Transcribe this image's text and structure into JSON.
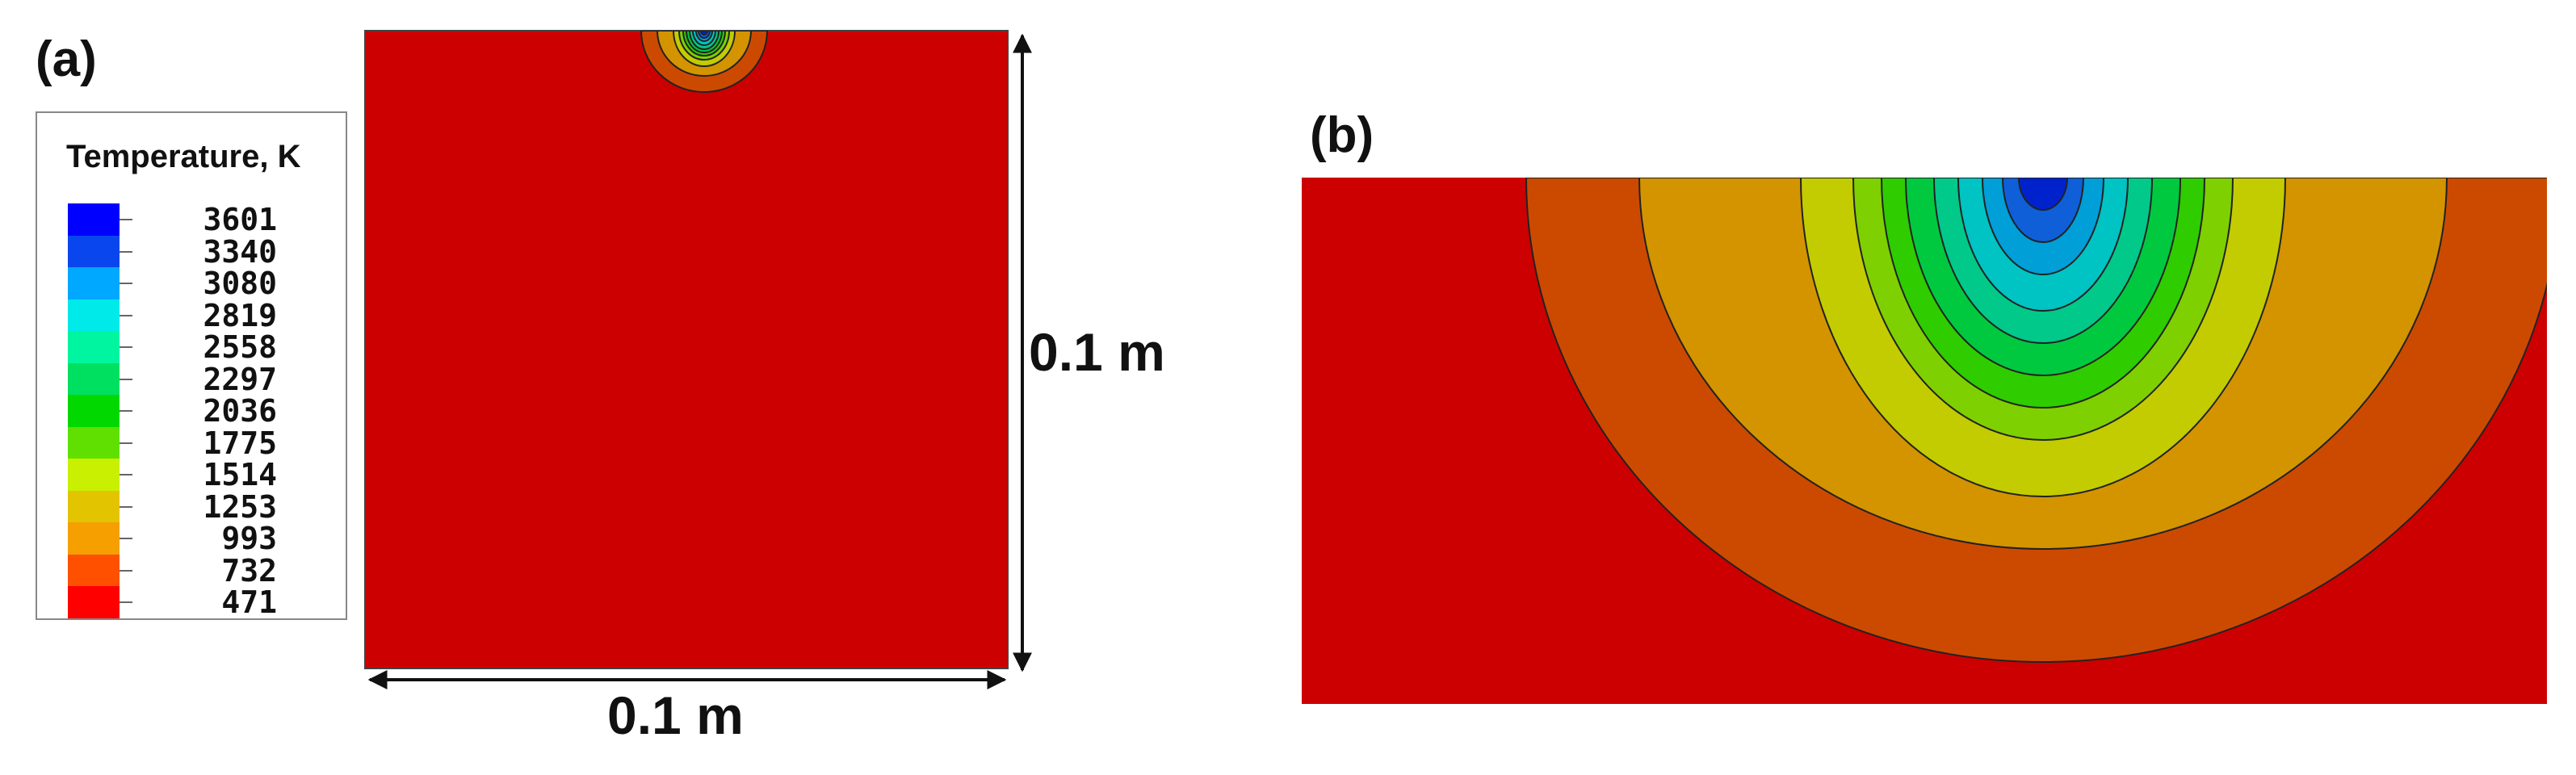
{
  "panel_a_label": "(a)",
  "panel_b_label": "(b)",
  "legend": {
    "title": "Temperature, K",
    "levels": [
      {
        "value": "3601",
        "color": "#0000ff"
      },
      {
        "value": "3340",
        "color": "#0a46ee"
      },
      {
        "value": "3080",
        "color": "#00a8ff"
      },
      {
        "value": "2819",
        "color": "#00eaea"
      },
      {
        "value": "2558",
        "color": "#00f5a0"
      },
      {
        "value": "2297",
        "color": "#00e060"
      },
      {
        "value": "2036",
        "color": "#00d800"
      },
      {
        "value": "1775",
        "color": "#5fe000"
      },
      {
        "value": "1514",
        "color": "#c8f000"
      },
      {
        "value": "1253",
        "color": "#e3c400"
      },
      {
        "value": "993",
        "color": "#f59f00"
      },
      {
        "value": "732",
        "color": "#ff5000"
      },
      {
        "value": "471",
        "color": "#ff0000"
      }
    ]
  },
  "dimension_horizontal": "0.1 m",
  "dimension_vertical": "0.1 m",
  "field_colors": {
    "background": "#cc0000",
    "contours_outer_to_inner": [
      "#cc4a00",
      "#d39400",
      "#c2cc00",
      "#7ed000",
      "#2fcc00",
      "#00c940",
      "#00c98a",
      "#00c3c3",
      "#009fd8",
      "#0f5fd9",
      "#0022cc"
    ]
  }
}
